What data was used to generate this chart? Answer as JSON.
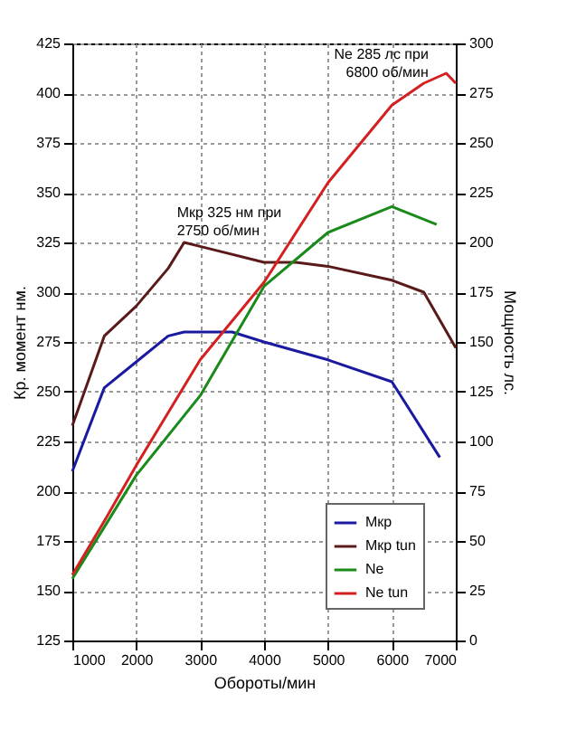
{
  "chart_data": {
    "type": "line",
    "xlabel": "Обороты/мин",
    "ylabel": "Кр. момент нм.",
    "y2label": "Мощность лс.",
    "xlim": [
      1000,
      7000
    ],
    "xticks": [
      1000,
      2000,
      3000,
      4000,
      5000,
      6000,
      7000
    ],
    "ylim": [
      125,
      425
    ],
    "yticks": [
      125,
      150,
      175,
      200,
      225,
      250,
      275,
      300,
      325,
      350,
      375,
      400,
      425
    ],
    "y2lim": [
      0,
      300
    ],
    "y2ticks": [
      0,
      25,
      50,
      75,
      100,
      125,
      150,
      175,
      200,
      225,
      250,
      275,
      300
    ],
    "grid": true,
    "legend": "bottom right",
    "marker": "none",
    "line_style": "solid",
    "annotations": [
      {
        "text": "Мкр 325 нм при\n2750 об/мин",
        "x": 2750,
        "y": 325
      },
      {
        "text": "Ne 285 лс при\n6800 об/мин",
        "x": 6800,
        "y": 410
      }
    ],
    "series": [
      {
        "name": "Мкр",
        "color": "#1a1aa0",
        "x": [
          1000,
          1500,
          2000,
          2500,
          2750,
          3500,
          4000,
          5000,
          6000,
          6750
        ],
        "values": [
          210,
          252,
          265,
          278,
          280,
          280,
          275,
          266,
          255,
          217
        ]
      },
      {
        "name": "Мкр tun",
        "color": "#5a1a1a",
        "x": [
          1000,
          1500,
          2000,
          2500,
          2750,
          3000,
          4000,
          4500,
          5000,
          6000,
          6500,
          7000
        ],
        "values": [
          233,
          278,
          293,
          312,
          325,
          323,
          315,
          315,
          313,
          306,
          300,
          272
        ]
      },
      {
        "name": "Ne",
        "color": "#1a8a1a",
        "axis": "y2",
        "x": [
          1000,
          1500,
          2000,
          3000,
          4000,
          5000,
          6000,
          6700
        ],
        "values": [
          31,
          57,
          83,
          123,
          178,
          205,
          218,
          209
        ]
      },
      {
        "name": "Ne tun",
        "color": "#d42020",
        "axis": "y2",
        "x": [
          1000,
          1500,
          2000,
          3000,
          4000,
          5000,
          6000,
          6500,
          6850,
          7000
        ],
        "values": [
          33,
          60,
          88,
          141,
          180,
          230,
          269,
          280,
          285,
          280
        ]
      }
    ]
  }
}
